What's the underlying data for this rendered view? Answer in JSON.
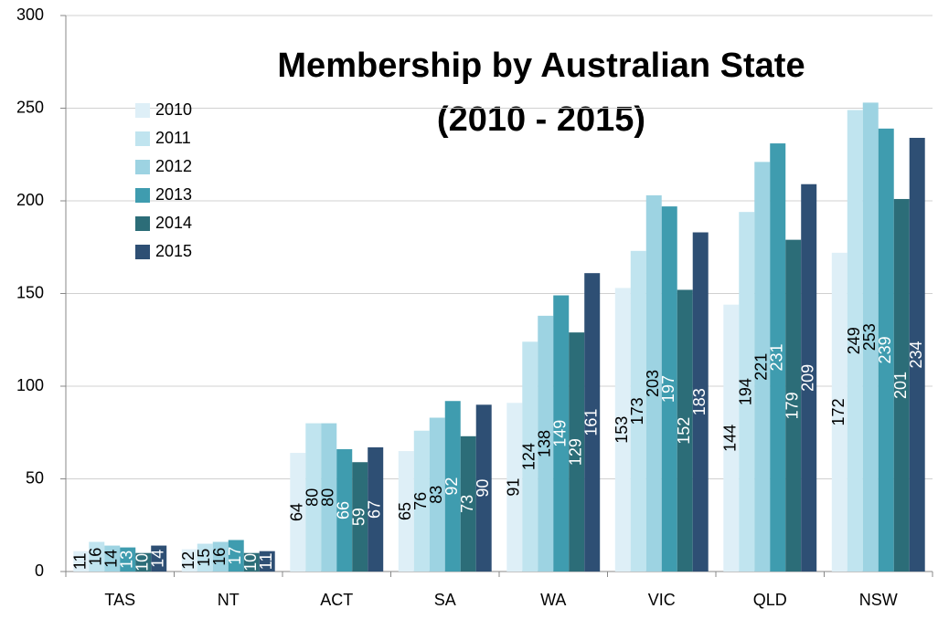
{
  "chart_data": {
    "type": "bar",
    "title": "Membership by Australian State",
    "subtitle": "(2010 - 2015)",
    "categories": [
      "TAS",
      "NT",
      "ACT",
      "SA",
      "WA",
      "VIC",
      "QLD",
      "NSW"
    ],
    "series": [
      {
        "name": "2010",
        "color": "#deeff7",
        "label_color": "#000000",
        "values": [
          11,
          12,
          64,
          65,
          91,
          153,
          144,
          172
        ]
      },
      {
        "name": "2011",
        "color": "#c0e4ef",
        "label_color": "#000000",
        "values": [
          16,
          15,
          80,
          76,
          124,
          173,
          194,
          249
        ]
      },
      {
        "name": "2012",
        "color": "#9dd3e2",
        "label_color": "#000000",
        "values": [
          14,
          16,
          80,
          83,
          138,
          203,
          221,
          253
        ]
      },
      {
        "name": "2013",
        "color": "#3f9caf",
        "label_color": "#ffffff",
        "values": [
          13,
          17,
          66,
          92,
          149,
          197,
          231,
          239
        ]
      },
      {
        "name": "2014",
        "color": "#2c6d78",
        "label_color": "#ffffff",
        "values": [
          10,
          10,
          59,
          73,
          129,
          152,
          179,
          201
        ]
      },
      {
        "name": "2015",
        "color": "#2e4f74",
        "label_color": "#ffffff",
        "values": [
          14,
          11,
          67,
          90,
          161,
          183,
          209,
          234
        ]
      }
    ],
    "ylim": [
      0,
      300
    ],
    "yticks": [
      0,
      50,
      100,
      150,
      200,
      250,
      300
    ],
    "grid": true,
    "legend": "top-left"
  }
}
